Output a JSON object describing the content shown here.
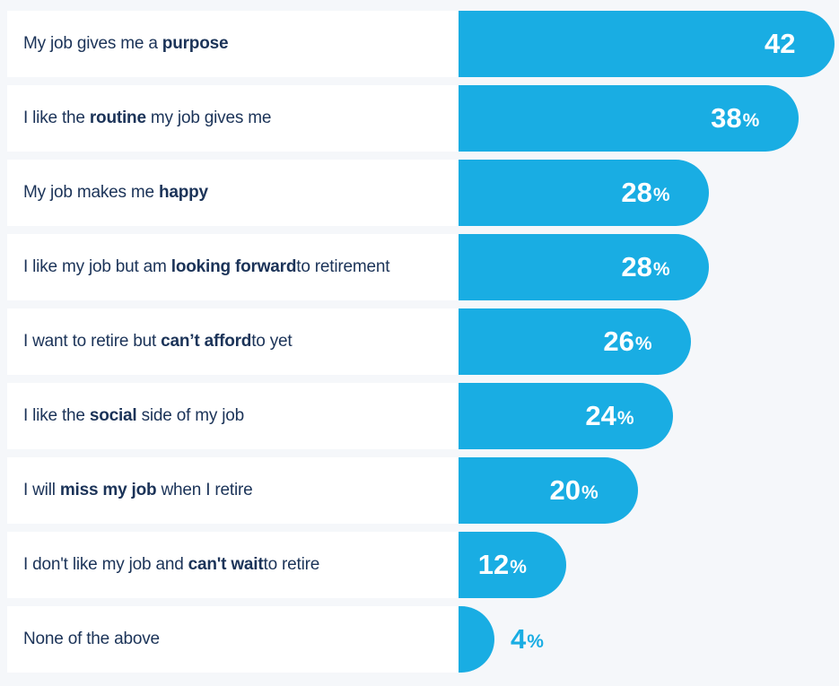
{
  "chart_data": {
    "type": "bar",
    "orientation": "horizontal",
    "title": "",
    "xlabel": "",
    "ylabel": "",
    "xlim": [
      0,
      42
    ],
    "unit": "%",
    "bar_color": "#19ade3",
    "label_color": "#1b3358",
    "categories": [
      {
        "parts": [
          {
            "t": "My job gives me a ",
            "b": false
          },
          {
            "t": "purpose",
            "b": true
          }
        ]
      },
      {
        "parts": [
          {
            "t": "I like the ",
            "b": false
          },
          {
            "t": "routine",
            "b": true
          },
          {
            "t": " my job gives me",
            "b": false
          }
        ]
      },
      {
        "parts": [
          {
            "t": "My job makes me ",
            "b": false
          },
          {
            "t": "happy",
            "b": true
          }
        ]
      },
      {
        "parts": [
          {
            "t": "I like my job but am ",
            "b": false
          },
          {
            "t": "looking forward",
            "b": true
          },
          {
            "t": "to retirement",
            "b": false
          }
        ]
      },
      {
        "parts": [
          {
            "t": "I want to retire but ",
            "b": false
          },
          {
            "t": "can’t afford",
            "b": true
          },
          {
            "t": "to yet",
            "b": false
          }
        ]
      },
      {
        "parts": [
          {
            "t": "I like the ",
            "b": false
          },
          {
            "t": "social",
            "b": true
          },
          {
            "t": " side of my job",
            "b": false
          }
        ]
      },
      {
        "parts": [
          {
            "t": "I will ",
            "b": false
          },
          {
            "t": "miss my job",
            "b": true
          },
          {
            "t": " when I retire",
            "b": false
          }
        ]
      },
      {
        "parts": [
          {
            "t": "I don't like my job and ",
            "b": false
          },
          {
            "t": "can't wait",
            "b": true
          },
          {
            "t": "to retire",
            "b": false
          }
        ]
      },
      {
        "parts": [
          {
            "t": "None of the above",
            "b": false
          }
        ]
      }
    ],
    "values": [
      42,
      38,
      28,
      28,
      26,
      24,
      20,
      12,
      4
    ],
    "value_labels": [
      {
        "num": "42",
        "suffix": ""
      },
      {
        "num": "38",
        "suffix": "%"
      },
      {
        "num": "28",
        "suffix": "%"
      },
      {
        "num": "28",
        "suffix": "%"
      },
      {
        "num": "26",
        "suffix": "%"
      },
      {
        "num": "24",
        "suffix": "%"
      },
      {
        "num": "20",
        "suffix": "%"
      },
      {
        "num": "12",
        "suffix": "%"
      },
      {
        "num": "4",
        "suffix": "%"
      }
    ]
  }
}
